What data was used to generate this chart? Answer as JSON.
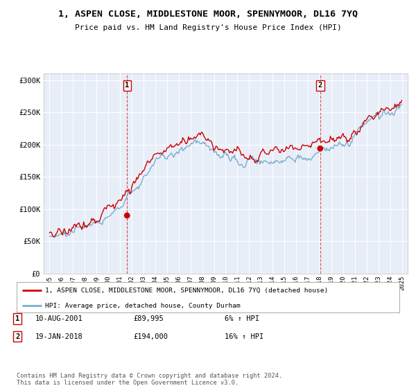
{
  "title": "1, ASPEN CLOSE, MIDDLESTONE MOOR, SPENNYMOOR, DL16 7YQ",
  "subtitle": "Price paid vs. HM Land Registry's House Price Index (HPI)",
  "ylim": [
    0,
    310000
  ],
  "yticks": [
    0,
    50000,
    100000,
    150000,
    200000,
    250000,
    300000
  ],
  "ytick_labels": [
    "£0",
    "£50K",
    "£100K",
    "£150K",
    "£200K",
    "£250K",
    "£300K"
  ],
  "sale1_date": 2001.6,
  "sale1_price": 89995,
  "sale1_label": "1",
  "sale1_text": "10-AUG-2001",
  "sale1_amount": "£89,995",
  "sale1_hpi": "6% ↑ HPI",
  "sale2_date": 2018.05,
  "sale2_price": 194000,
  "sale2_label": "2",
  "sale2_text": "19-JAN-2018",
  "sale2_amount": "£194,000",
  "sale2_hpi": "16% ↑ HPI",
  "line_color_red": "#cc0000",
  "line_color_blue": "#7aadcc",
  "background_color": "#e8eef8",
  "legend_label_red": "1, ASPEN CLOSE, MIDDLESTONE MOOR, SPENNYMOOR, DL16 7YQ (detached house)",
  "legend_label_blue": "HPI: Average price, detached house, County Durham",
  "footer": "Contains HM Land Registry data © Crown copyright and database right 2024.\nThis data is licensed under the Open Government Licence v3.0."
}
